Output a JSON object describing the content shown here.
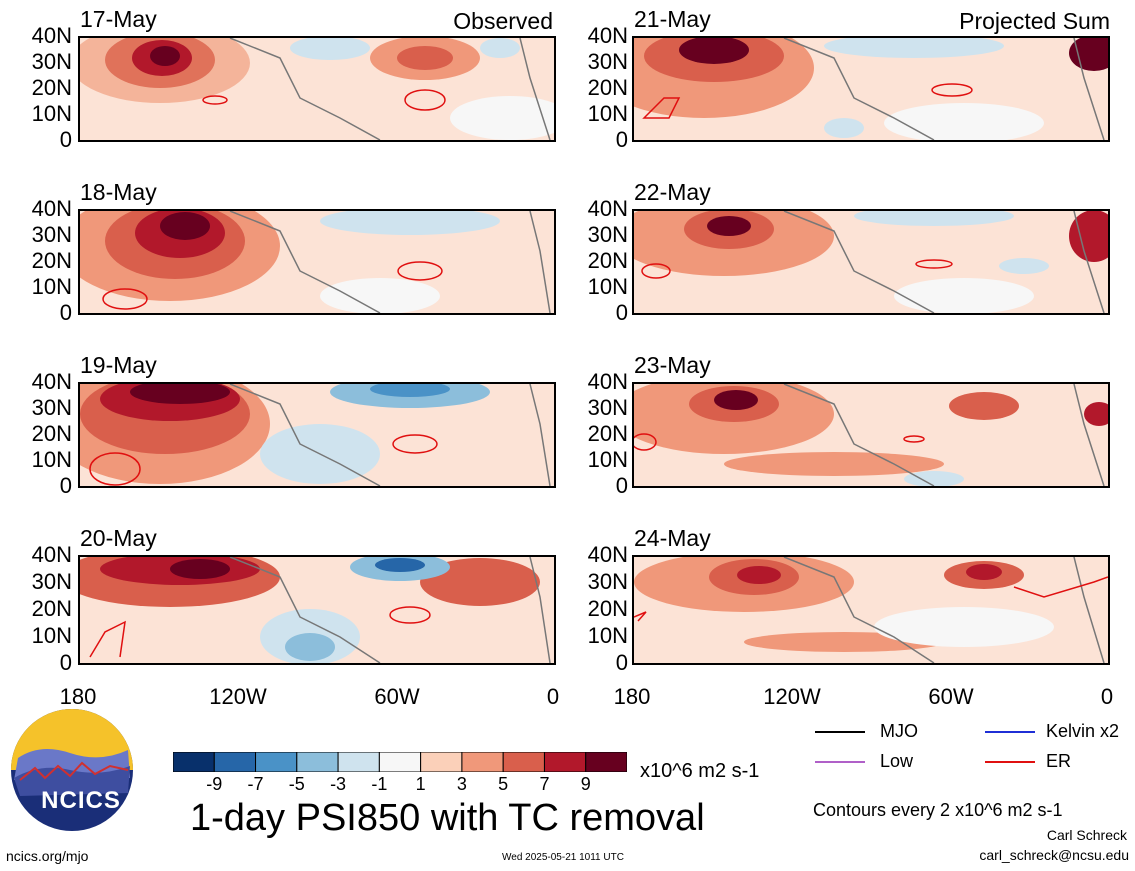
{
  "panels_left": [
    {
      "date": "17-May",
      "label": "Observed"
    },
    {
      "date": "18-May",
      "label": ""
    },
    {
      "date": "19-May",
      "label": ""
    },
    {
      "date": "20-May",
      "label": ""
    }
  ],
  "panels_right": [
    {
      "date": "21-May",
      "label": "Projected Sum"
    },
    {
      "date": "22-May",
      "label": ""
    },
    {
      "date": "23-May",
      "label": ""
    },
    {
      "date": "24-May",
      "label": ""
    }
  ],
  "y_ticks": [
    "40N",
    "30N",
    "20N",
    "10N",
    "0"
  ],
  "x_ticks": [
    "180",
    "120W",
    "60W",
    "0"
  ],
  "colorbar": {
    "ticks": [
      "-9",
      "-7",
      "-5",
      "-3",
      "-1",
      "1",
      "3",
      "5",
      "7",
      "9"
    ],
    "unit": "x10^6 m2 s-1",
    "colors": [
      "#08306b",
      "#2666a8",
      "#4a92c7",
      "#8cbedb",
      "#cfe3ee",
      "#f7f7f7",
      "#fbd0b9",
      "#f0987a",
      "#d95f4c",
      "#b2182b",
      "#67001f"
    ]
  },
  "legend": {
    "mjo": {
      "label": "MJO",
      "color": "#000000"
    },
    "kelvin": {
      "label": "Kelvin x2",
      "color": "#1f2fd6"
    },
    "low": {
      "label": "Low",
      "color": "#b060c8"
    },
    "er": {
      "label": "ER",
      "color": "#e01010"
    }
  },
  "title": "1-day PSI850 with TC removal",
  "contours_note": "Contours every 2 x10^6 m2 s-1",
  "author": "Carl Schreck",
  "email": "carl_schreck@ncsu.edu",
  "site": "ncics.org/mjo",
  "timestamp": "Wed 2025-05-21 1011 UTC",
  "logo_text": "NCICS"
}
